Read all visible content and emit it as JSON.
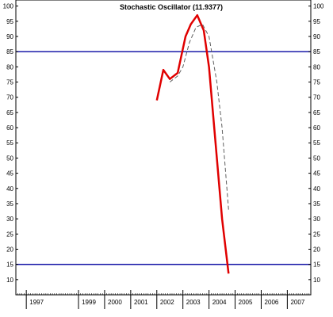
{
  "chart_data": {
    "type": "line",
    "title": "Stochastic Oscillator (11.9377)",
    "xlabel": "",
    "ylabel": "",
    "ylim": [
      5,
      102
    ],
    "xlim": [
      1996.6,
      2007.9
    ],
    "y_ticks": [
      10,
      15,
      20,
      25,
      30,
      35,
      40,
      45,
      50,
      55,
      60,
      65,
      70,
      75,
      80,
      85,
      90,
      95,
      100
    ],
    "x_tick_labels": [
      "1997",
      "1999",
      "2000",
      "2001",
      "2002",
      "2003",
      "2004",
      "2005",
      "2006",
      "2007"
    ],
    "x_tick_positions": [
      1997,
      1999,
      2000,
      2001,
      2002,
      2003,
      2004,
      2005,
      2006,
      2007
    ],
    "grid": false,
    "reference_lines": [
      {
        "value": 85,
        "color": "#1a1aa8"
      },
      {
        "value": 15,
        "color": "#1a1aa8"
      }
    ],
    "series": [
      {
        "style": "solid",
        "color": "#e00000",
        "points": [
          [
            2002.0,
            69
          ],
          [
            2002.25,
            79
          ],
          [
            2002.5,
            76
          ],
          [
            2002.8,
            78
          ],
          [
            2003.1,
            90
          ],
          [
            2003.3,
            94
          ],
          [
            2003.55,
            97
          ],
          [
            2003.8,
            92
          ],
          [
            2004.0,
            80
          ],
          [
            2004.2,
            60
          ],
          [
            2004.5,
            30
          ],
          [
            2004.75,
            12
          ]
        ]
      },
      {
        "style": "dashed",
        "color": "#606060",
        "points": [
          [
            2002.5,
            75
          ],
          [
            2002.8,
            77
          ],
          [
            2003.0,
            80
          ],
          [
            2003.25,
            88
          ],
          [
            2003.5,
            93
          ],
          [
            2003.75,
            94
          ],
          [
            2004.0,
            90
          ],
          [
            2004.3,
            75
          ],
          [
            2004.5,
            60
          ],
          [
            2004.75,
            33
          ]
        ]
      }
    ]
  }
}
